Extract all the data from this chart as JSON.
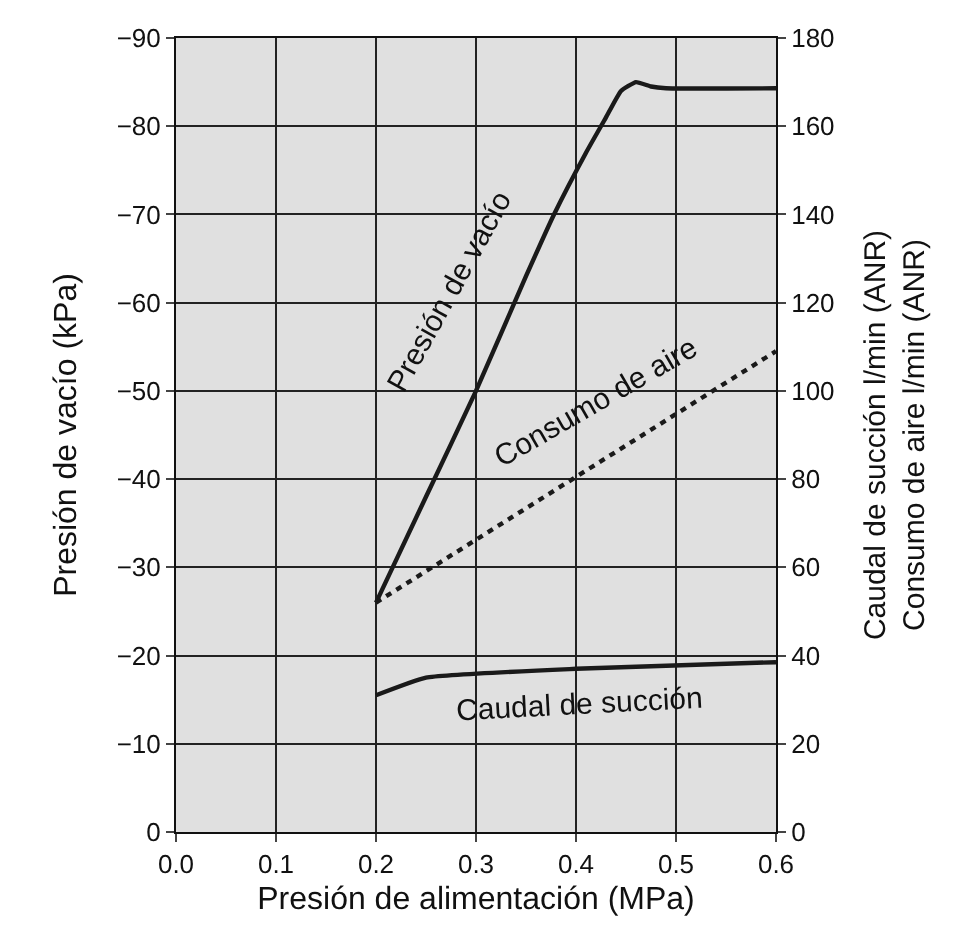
{
  "chart_data": {
    "type": "line",
    "xlabel": "Presión de alimentación (MPa)",
    "ylabel": "Presión de vacío (kPa)",
    "y2label": "Caudal de succión l/min (ANR)\nConsumo de aire l/min (ANR)",
    "xlim": [
      0,
      0.6
    ],
    "xticks": [
      {
        "value": 0,
        "label": "0.0"
      },
      {
        "value": 0.1,
        "label": "0.1"
      },
      {
        "value": 0.2,
        "label": "0.2"
      },
      {
        "value": 0.3,
        "label": "0.3"
      },
      {
        "value": 0.4,
        "label": "0.4"
      },
      {
        "value": 0.5,
        "label": "0.5"
      },
      {
        "value": 0.6,
        "label": "0.6"
      }
    ],
    "ylim": [
      0,
      -90
    ],
    "yticks": [
      0,
      {
        "value": -10,
        "label": "−10"
      },
      {
        "value": -20,
        "label": "−20"
      },
      {
        "value": -30,
        "label": "−30"
      },
      {
        "value": -40,
        "label": "−40"
      },
      {
        "value": -50,
        "label": "−50"
      },
      {
        "value": -60,
        "label": "−60"
      },
      {
        "value": -70,
        "label": "−70"
      },
      {
        "value": -80,
        "label": "−80"
      },
      {
        "value": -90,
        "label": "−90"
      }
    ],
    "y2lim": [
      0,
      180
    ],
    "y2ticks": [
      0,
      20,
      40,
      60,
      80,
      100,
      120,
      140,
      160,
      180
    ],
    "grid": true,
    "marker": "none",
    "series": [
      {
        "color": "#1a1a1a",
        "line_style": "solid",
        "x": [
          0.2,
          0.25,
          0.3,
          0.35,
          0.378,
          0.41,
          0.43,
          0.445,
          0.46,
          0.475,
          0.49,
          0.6
        ],
        "values": [
          -26,
          -38,
          -50,
          -63,
          -70,
          -77,
          -81,
          -84,
          -85,
          -84.5,
          -84.3,
          -84.3
        ]
      },
      {
        "color": "#1a1a1a",
        "line_style": "dotted",
        "axis": "y2",
        "x": [
          0.2,
          0.6
        ],
        "values": [
          52,
          109
        ]
      },
      {
        "color": "#1a1a1a",
        "line_style": "solid",
        "axis": "y2",
        "x": [
          0.2,
          0.25,
          0.4,
          0.6
        ],
        "values": [
          31,
          35,
          37,
          38.5
        ]
      }
    ],
    "annotations": [
      "Presión de vacío",
      "Consumo de aire",
      "Caudal de succión"
    ]
  }
}
